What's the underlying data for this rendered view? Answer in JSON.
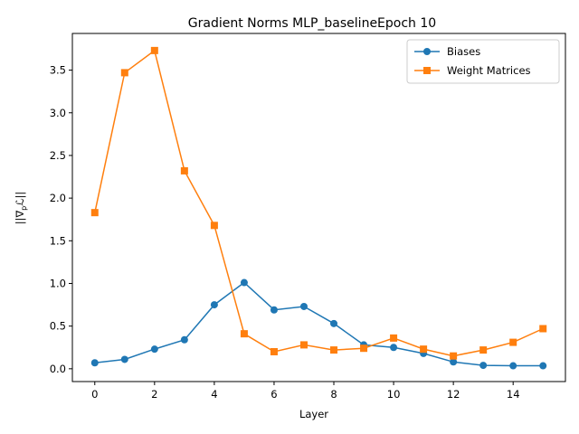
{
  "chart_data": {
    "type": "line",
    "title": "Gradient Norms MLP_baselineEpoch 10",
    "xlabel": "Layer",
    "ylabel": "||∇_p ℒ||",
    "xlim": [
      -0.75,
      15.75
    ],
    "ylim": [
      -0.15,
      3.93
    ],
    "xticks": [
      0,
      2,
      4,
      6,
      8,
      10,
      12,
      14
    ],
    "yticks": [
      0.0,
      0.5,
      1.0,
      1.5,
      2.0,
      2.5,
      3.0,
      3.5
    ],
    "xtick_labels": [
      "0",
      "2",
      "4",
      "6",
      "8",
      "10",
      "12",
      "14"
    ],
    "ytick_labels": [
      "0.0",
      "0.5",
      "1.0",
      "1.5",
      "2.0",
      "2.5",
      "3.0",
      "3.5"
    ],
    "grid": false,
    "legend_position": "upper right",
    "x": [
      0,
      1,
      2,
      3,
      4,
      5,
      6,
      7,
      8,
      9,
      10,
      11,
      12,
      13,
      14,
      15
    ],
    "series": [
      {
        "name": "Biases",
        "color": "#1f77b4",
        "marker": "circle",
        "values": [
          0.07,
          0.11,
          0.23,
          0.34,
          0.75,
          1.01,
          0.69,
          0.73,
          0.53,
          0.28,
          0.25,
          0.18,
          0.08,
          0.04,
          0.035,
          0.035
        ]
      },
      {
        "name": "Weight Matrices",
        "color": "#ff7f0e",
        "marker": "square",
        "values": [
          1.83,
          3.47,
          3.73,
          2.32,
          1.68,
          0.41,
          0.2,
          0.28,
          0.22,
          0.24,
          0.36,
          0.23,
          0.15,
          0.22,
          0.31,
          0.47
        ]
      }
    ]
  }
}
